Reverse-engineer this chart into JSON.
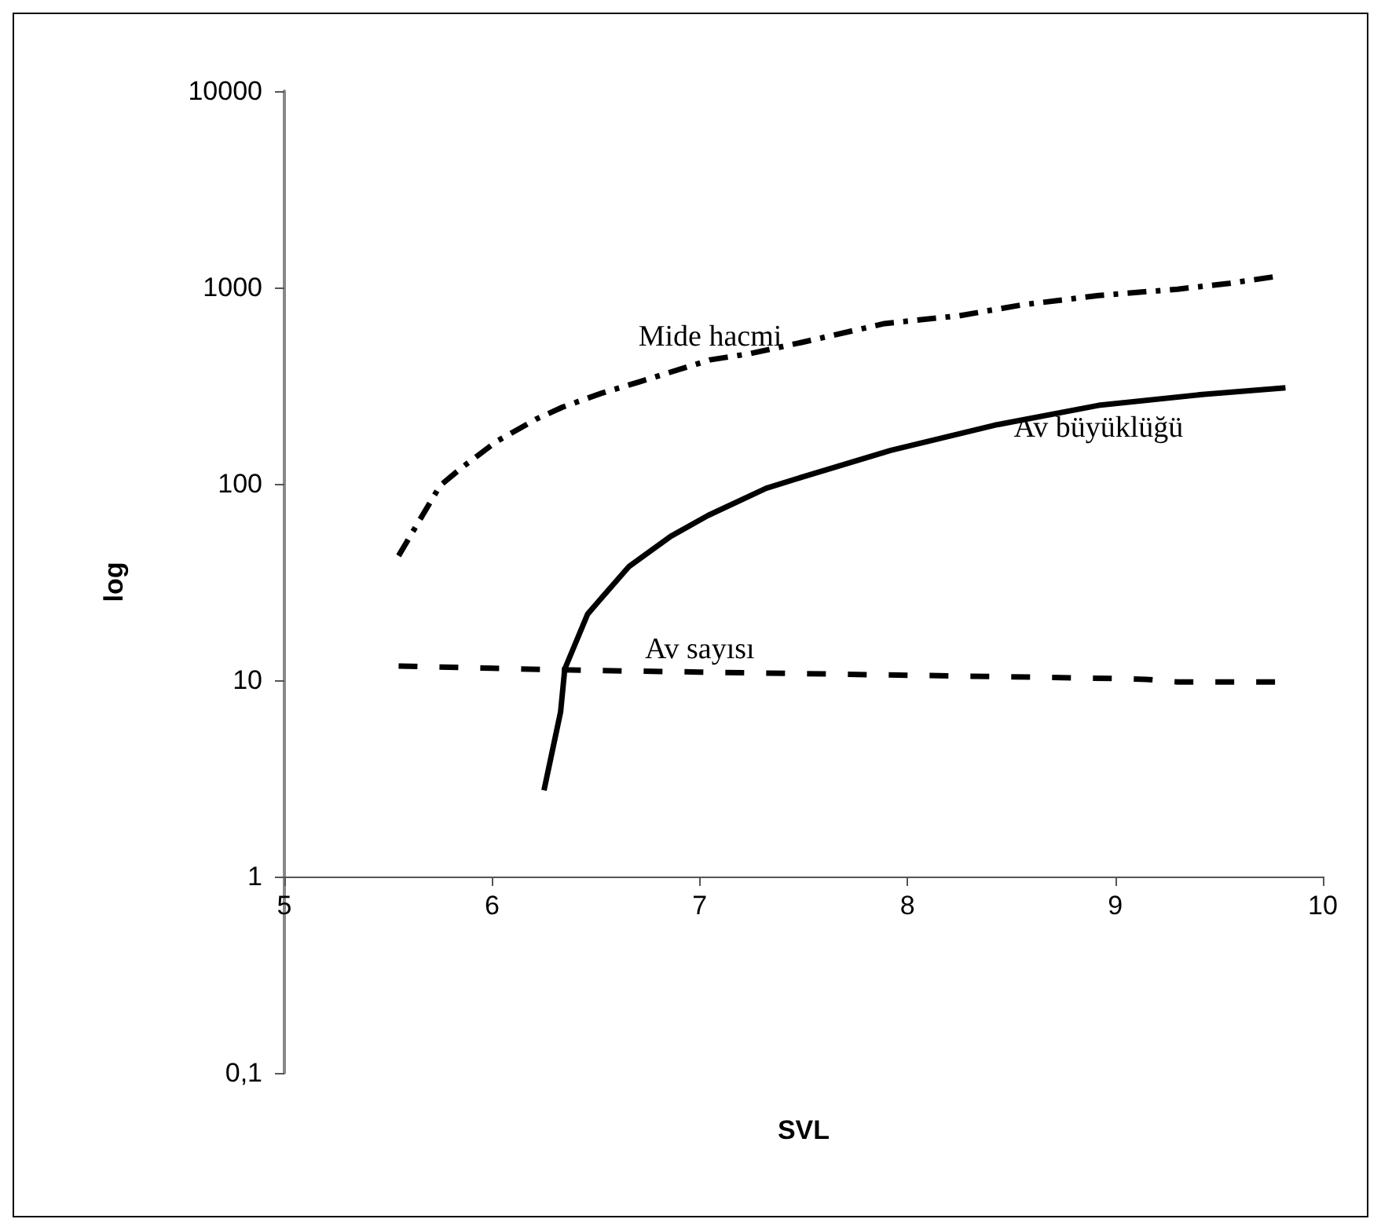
{
  "chart_data": {
    "type": "line",
    "xlabel": "SVL",
    "ylabel": "log",
    "log": "y",
    "grid": false,
    "legend": false,
    "marker": "none",
    "xlim": [
      5,
      10
    ],
    "xticks": [
      5,
      6,
      7,
      8,
      9,
      10
    ],
    "ylim": [
      0.1,
      10000
    ],
    "yticks": [
      {
        "value": 0.1,
        "label": "0,1"
      },
      1,
      10,
      100,
      1000,
      10000
    ],
    "series": [
      {
        "name": "Mide hacmi",
        "color": "#000000",
        "line_style": "dashed",
        "x": [
          5.55,
          5.65,
          5.75,
          5.85,
          6.02,
          6.21,
          6.34,
          6.53,
          6.71,
          7.05,
          7.24,
          7.49,
          7.89,
          8.25,
          8.55,
          8.92,
          9.3,
          9.55,
          9.78
        ],
        "values": [
          43,
          65,
          98,
          120,
          164,
          213,
          246,
          290,
          331,
          428,
          460,
          525,
          655,
          718,
          815,
          910,
          980,
          1050,
          1140
        ]
      },
      {
        "name": "Av büyüklüğü",
        "color": "#000000",
        "line_style": "solid",
        "x": [
          6.25,
          6.33,
          6.35,
          6.46,
          6.51,
          6.66,
          6.86,
          7.04,
          7.32,
          7.49,
          7.92,
          8.42,
          8.92,
          9.43,
          9.82
        ],
        "values": [
          2.75,
          6.9,
          11.4,
          21.7,
          25,
          38,
          54,
          69,
          95,
          108,
          148,
          199,
          251,
          286,
          308
        ]
      },
      {
        "name": "Av sayısı",
        "color": "#000000",
        "line_style": "dotted",
        "x": [
          5.55,
          6,
          6.5,
          7,
          7.5,
          8,
          8.5,
          9,
          9.15,
          9.3,
          9.8
        ],
        "values": [
          11.8,
          11.5,
          11.2,
          11,
          10.8,
          10.6,
          10.4,
          10.2,
          10.1,
          9.8,
          9.8
        ]
      }
    ]
  }
}
